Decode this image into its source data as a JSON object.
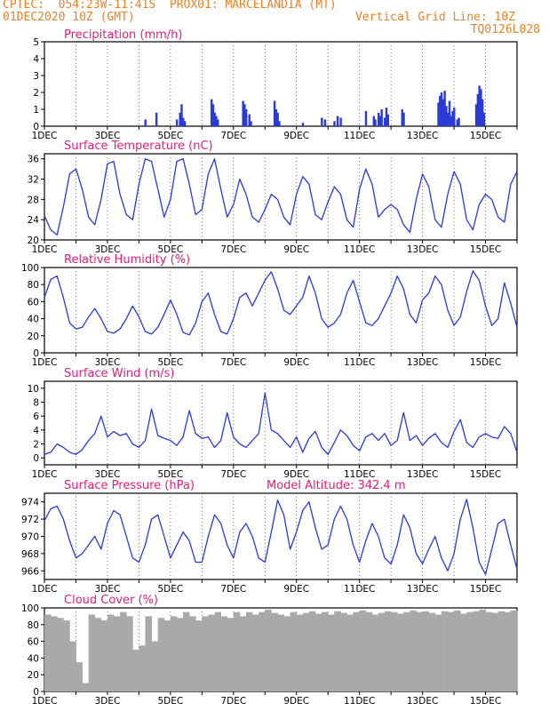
{
  "header": {
    "line1_left": "CPTEC:  054:23W-11:41S  PROX01: MARCELANDIA (MT)",
    "line2_left": "01DEC2020 10Z (GMT)",
    "line2_right": "Vertical Grid Line: 10Z",
    "line3_right": "TQ0126L028"
  },
  "colors": {
    "header": "#e8832a",
    "title": "#e0207a",
    "line": "#2a3ad6",
    "cloud": "#a9a9a9"
  },
  "x_labels": [
    "1DEC",
    "3DEC",
    "5DEC",
    "7DEC",
    "9DEC",
    "11DEC",
    "13DEC",
    "15DEC"
  ],
  "chart_data": [
    {
      "type": "bar",
      "title": "Precipitation (mm/h)",
      "ylim": [
        0,
        5
      ],
      "yticks": [
        "0",
        "1",
        "2",
        "3",
        "4",
        "5"
      ],
      "x_range_days": [
        0,
        15
      ],
      "x": [
        3.2,
        3.55,
        4.2,
        4.3,
        4.35,
        4.4,
        4.45,
        5.3,
        5.35,
        5.4,
        5.45,
        5.5,
        6.3,
        6.35,
        6.4,
        6.5,
        6.55,
        7.3,
        7.35,
        7.4,
        7.45,
        8.2,
        8.8,
        8.9,
        9.2,
        9.3,
        9.4,
        10.2,
        10.45,
        10.5,
        10.6,
        10.65,
        10.7,
        10.8,
        10.85,
        10.9,
        11.35,
        11.4,
        12.5,
        12.55,
        12.6,
        12.65,
        12.7,
        12.75,
        12.8,
        12.85,
        12.9,
        12.95,
        13.0,
        13.1,
        13.15,
        13.7,
        13.75,
        13.8,
        13.85,
        13.9,
        13.95
      ],
      "values": [
        0.4,
        0.8,
        0.4,
        0.8,
        1.3,
        0.5,
        0.3,
        1.6,
        1.3,
        0.8,
        0.6,
        0.4,
        1.5,
        1.3,
        1.0,
        0.7,
        0.3,
        1.5,
        1.0,
        0.8,
        0.3,
        0.2,
        0.5,
        0.4,
        0.3,
        0.6,
        0.5,
        0.9,
        0.6,
        0.4,
        0.8,
        0.6,
        1.0,
        0.5,
        1.1,
        0.7,
        1.0,
        0.8,
        1.4,
        1.8,
        2.0,
        1.6,
        2.1,
        1.2,
        0.8,
        1.5,
        0.6,
        0.9,
        1.1,
        0.4,
        0.5,
        1.3,
        1.9,
        2.4,
        2.2,
        1.6,
        0.8
      ]
    },
    {
      "type": "line",
      "title": "Surface Temperature (nC)",
      "ylim": [
        20,
        37
      ],
      "yticks": [
        "20",
        "24",
        "28",
        "32",
        "36"
      ],
      "x_range_days": [
        0,
        15
      ],
      "x": [
        0,
        0.2,
        0.4,
        0.6,
        0.8,
        1.0,
        1.2,
        1.4,
        1.6,
        1.8,
        2.0,
        2.2,
        2.4,
        2.6,
        2.8,
        3.0,
        3.2,
        3.4,
        3.6,
        3.8,
        4.0,
        4.2,
        4.4,
        4.6,
        4.8,
        5.0,
        5.2,
        5.4,
        5.6,
        5.8,
        6.0,
        6.2,
        6.4,
        6.6,
        6.8,
        7.0,
        7.2,
        7.4,
        7.6,
        7.8,
        8.0,
        8.2,
        8.4,
        8.6,
        8.8,
        9.0,
        9.2,
        9.4,
        9.6,
        9.8,
        10.0,
        10.2,
        10.4,
        10.6,
        10.8,
        11.0,
        11.2,
        11.4,
        11.6,
        11.8,
        12.0,
        12.2,
        12.4,
        12.6,
        12.8,
        13.0,
        13.2,
        13.4,
        13.6,
        13.8,
        14.0,
        14.2,
        14.4,
        14.6,
        14.8,
        15.0
      ],
      "values": [
        24.8,
        22.0,
        21.0,
        26.5,
        33.0,
        34.0,
        30.0,
        24.5,
        23.0,
        28.0,
        35.0,
        35.5,
        29.0,
        25.0,
        24.0,
        31.0,
        36.0,
        35.5,
        30.0,
        24.5,
        28.0,
        35.5,
        36.0,
        31.0,
        25.0,
        26.0,
        33.0,
        36.0,
        30.0,
        24.5,
        27.0,
        32.0,
        29.0,
        24.5,
        23.5,
        26.0,
        29.0,
        28.0,
        24.5,
        23.0,
        29.0,
        32.5,
        31.0,
        25.0,
        24.0,
        27.5,
        30.5,
        29.0,
        24.0,
        22.5,
        30.0,
        34.0,
        31.0,
        24.5,
        26.0,
        27.0,
        26.0,
        23.0,
        21.5,
        28.0,
        33.0,
        30.5,
        24.0,
        22.5,
        29.0,
        33.5,
        31.0,
        24.0,
        22.0,
        27.0,
        29.0,
        28.0,
        24.5,
        23.5,
        31.0,
        33.5
      ]
    },
    {
      "type": "line",
      "title": "Relative Humidity (%)",
      "ylim": [
        0,
        100
      ],
      "yticks": [
        "0",
        "20",
        "40",
        "60",
        "80",
        "100"
      ],
      "x_range_days": [
        0,
        15
      ],
      "x": [
        0,
        0.2,
        0.4,
        0.6,
        0.8,
        1.0,
        1.2,
        1.4,
        1.6,
        1.8,
        2.0,
        2.2,
        2.4,
        2.6,
        2.8,
        3.0,
        3.2,
        3.4,
        3.6,
        3.8,
        4.0,
        4.2,
        4.4,
        4.6,
        4.8,
        5.0,
        5.2,
        5.4,
        5.6,
        5.8,
        6.0,
        6.2,
        6.4,
        6.6,
        6.8,
        7.0,
        7.2,
        7.4,
        7.6,
        7.8,
        8.0,
        8.2,
        8.4,
        8.6,
        8.8,
        9.0,
        9.2,
        9.4,
        9.6,
        9.8,
        10.0,
        10.2,
        10.4,
        10.6,
        10.8,
        11.0,
        11.2,
        11.4,
        11.6,
        11.8,
        12.0,
        12.2,
        12.4,
        12.6,
        12.8,
        13.0,
        13.2,
        13.4,
        13.6,
        13.8,
        14.0,
        14.2,
        14.4,
        14.6,
        14.8,
        15.0
      ],
      "values": [
        65,
        86,
        90,
        65,
        35,
        28,
        30,
        42,
        52,
        40,
        25,
        23,
        28,
        40,
        55,
        42,
        25,
        22,
        30,
        45,
        62,
        45,
        24,
        21,
        35,
        60,
        70,
        45,
        25,
        22,
        40,
        65,
        70,
        55,
        70,
        85,
        95,
        75,
        50,
        45,
        55,
        65,
        90,
        70,
        40,
        30,
        35,
        45,
        70,
        85,
        60,
        35,
        32,
        40,
        55,
        70,
        90,
        75,
        45,
        35,
        62,
        70,
        90,
        80,
        50,
        32,
        42,
        72,
        96,
        85,
        55,
        32,
        40,
        82,
        58,
        30
      ]
    },
    {
      "type": "line",
      "title": "Surface Wind (m/s)",
      "ylim": [
        -1,
        11
      ],
      "yticks": [
        "0",
        "2",
        "4",
        "6",
        "8",
        "10"
      ],
      "x_range_days": [
        0,
        15
      ],
      "x": [
        0,
        0.2,
        0.4,
        0.6,
        0.8,
        1.0,
        1.2,
        1.4,
        1.6,
        1.8,
        2.0,
        2.2,
        2.4,
        2.6,
        2.8,
        3.0,
        3.2,
        3.4,
        3.6,
        3.8,
        4.0,
        4.2,
        4.4,
        4.6,
        4.8,
        5.0,
        5.2,
        5.4,
        5.6,
        5.8,
        6.0,
        6.2,
        6.4,
        6.6,
        6.8,
        7.0,
        7.2,
        7.4,
        7.6,
        7.8,
        8.0,
        8.2,
        8.4,
        8.6,
        8.8,
        9.0,
        9.2,
        9.4,
        9.6,
        9.8,
        10.0,
        10.2,
        10.4,
        10.6,
        10.8,
        11.0,
        11.2,
        11.4,
        11.6,
        11.8,
        12.0,
        12.2,
        12.4,
        12.6,
        12.8,
        13.0,
        13.2,
        13.4,
        13.6,
        13.8,
        14.0,
        14.2,
        14.4,
        14.6,
        14.8,
        15.0
      ],
      "values": [
        0.5,
        0.8,
        2.0,
        1.5,
        0.8,
        0.5,
        1.2,
        2.5,
        3.5,
        6.0,
        3.0,
        3.8,
        3.2,
        3.5,
        2.0,
        1.5,
        2.5,
        7.0,
        3.2,
        2.8,
        2.5,
        1.8,
        3.0,
        6.8,
        3.5,
        2.8,
        3.0,
        1.5,
        2.5,
        6.5,
        3.0,
        2.0,
        1.5,
        2.5,
        3.5,
        9.3,
        4.0,
        3.5,
        2.5,
        1.5,
        3.0,
        0.8,
        2.8,
        3.8,
        1.5,
        0.5,
        2.2,
        4.0,
        3.2,
        1.8,
        1.0,
        3.0,
        3.5,
        2.5,
        3.5,
        1.8,
        2.5,
        6.5,
        2.5,
        3.2,
        1.8,
        2.8,
        3.5,
        2.2,
        1.5,
        3.8,
        5.5,
        2.2,
        1.5,
        3.0,
        3.5,
        3.0,
        2.8,
        4.5,
        3.5,
        0.8
      ]
    },
    {
      "type": "line",
      "title": "Surface Pressure (hPa)",
      "annotation": "Model Altitude: 342.4 m",
      "ylim": [
        965,
        975
      ],
      "yticks": [
        "966",
        "968",
        "970",
        "972",
        "974"
      ],
      "x_range_days": [
        0,
        15
      ],
      "x": [
        0,
        0.2,
        0.4,
        0.6,
        0.8,
        1.0,
        1.2,
        1.4,
        1.6,
        1.8,
        2.0,
        2.2,
        2.4,
        2.6,
        2.8,
        3.0,
        3.2,
        3.4,
        3.6,
        3.8,
        4.0,
        4.2,
        4.4,
        4.6,
        4.8,
        5.0,
        5.2,
        5.4,
        5.6,
        5.8,
        6.0,
        6.2,
        6.4,
        6.6,
        6.8,
        7.0,
        7.2,
        7.4,
        7.6,
        7.8,
        8.0,
        8.2,
        8.4,
        8.6,
        8.8,
        9.0,
        9.2,
        9.4,
        9.6,
        9.8,
        10.0,
        10.2,
        10.4,
        10.6,
        10.8,
        11.0,
        11.2,
        11.4,
        11.6,
        11.8,
        12.0,
        12.2,
        12.4,
        12.6,
        12.8,
        13.0,
        13.2,
        13.4,
        13.6,
        13.8,
        14.0,
        14.2,
        14.4,
        14.6,
        14.8,
        15.0
      ],
      "values": [
        971.8,
        973.2,
        973.5,
        972.0,
        969.5,
        967.5,
        968.0,
        969.0,
        970.0,
        968.5,
        971.5,
        973.0,
        972.5,
        970.0,
        967.5,
        967.0,
        969.0,
        972.0,
        972.5,
        970.0,
        967.5,
        969.0,
        970.5,
        969.5,
        967.0,
        967.0,
        970.0,
        972.5,
        971.5,
        969.0,
        967.5,
        970.5,
        971.5,
        970.0,
        967.5,
        967.0,
        970.5,
        974.2,
        972.5,
        968.5,
        970.5,
        973.0,
        974.0,
        971.0,
        968.5,
        969.0,
        972.0,
        973.5,
        972.0,
        969.0,
        967.0,
        969.5,
        971.5,
        970.0,
        967.5,
        966.8,
        969.0,
        972.5,
        971.0,
        968.0,
        966.8,
        968.5,
        970.0,
        967.5,
        966.0,
        968.0,
        972.0,
        974.3,
        971.0,
        967.0,
        965.6,
        968.5,
        971.5,
        972.0,
        969.0,
        966.2
      ]
    },
    {
      "type": "bar",
      "title": "Cloud Cover (%)",
      "ylim": [
        0,
        100
      ],
      "yticks": [
        "0",
        "20",
        "40",
        "60",
        "80",
        "100"
      ],
      "x_range_days": [
        0,
        15
      ],
      "x": [
        0,
        0.2,
        0.4,
        0.6,
        0.8,
        1.0,
        1.2,
        1.4,
        1.6,
        1.8,
        2.0,
        2.2,
        2.4,
        2.6,
        2.8,
        3.0,
        3.2,
        3.4,
        3.6,
        3.8,
        4.0,
        4.2,
        4.4,
        4.6,
        4.8,
        5.0,
        5.2,
        5.4,
        5.6,
        5.8,
        6.0,
        6.2,
        6.4,
        6.6,
        6.8,
        7.0,
        7.2,
        7.4,
        7.6,
        7.8,
        8.0,
        8.2,
        8.4,
        8.6,
        8.8,
        9.0,
        9.2,
        9.4,
        9.6,
        9.8,
        10.0,
        10.2,
        10.4,
        10.6,
        10.8,
        11.0,
        11.2,
        11.4,
        11.6,
        11.8,
        12.0,
        12.2,
        12.4,
        12.6,
        12.8,
        13.0,
        13.2,
        13.4,
        13.6,
        13.8,
        14.0,
        14.2,
        14.4,
        14.6,
        14.8,
        15.0
      ],
      "values": [
        92,
        90,
        88,
        85,
        60,
        35,
        10,
        92,
        88,
        85,
        92,
        90,
        95,
        90,
        50,
        55,
        90,
        60,
        88,
        85,
        90,
        88,
        95,
        90,
        85,
        90,
        92,
        95,
        90,
        88,
        95,
        90,
        95,
        92,
        95,
        98,
        94,
        92,
        90,
        95,
        92,
        94,
        96,
        93,
        95,
        92,
        96,
        94,
        92,
        95,
        97,
        95,
        92,
        94,
        96,
        95,
        93,
        95,
        97,
        95,
        96,
        94,
        92,
        96,
        95,
        97,
        93,
        95,
        96,
        98,
        95,
        94,
        96,
        95,
        97,
        95
      ]
    }
  ]
}
